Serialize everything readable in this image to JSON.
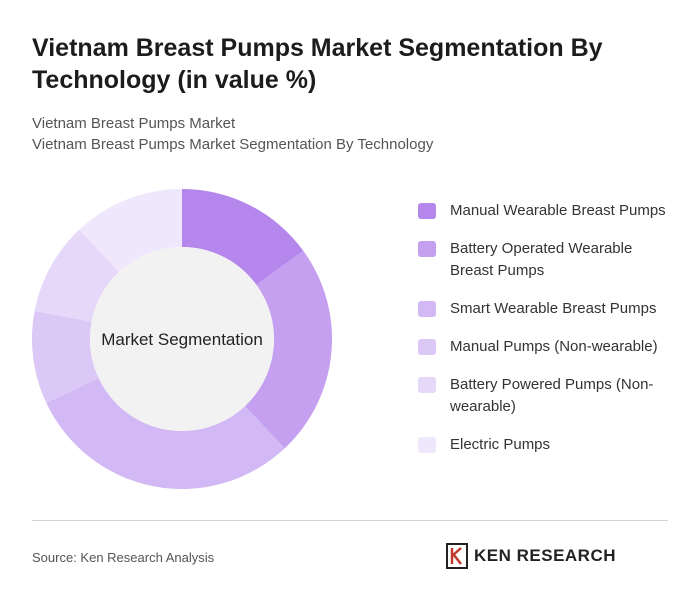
{
  "title": "Vietnam Breast Pumps Market Segmentation By Technology (in value %)",
  "subtitle_line1": "Vietnam Breast Pumps Market",
  "subtitle_line2": "Vietnam Breast Pumps Market Segmentation By Technology",
  "source": "Source: Ken Research Analysis",
  "logo_text": "KEN RESEARCH",
  "chart_data": {
    "type": "pie",
    "center_label": "Market Segmentation",
    "categories": [
      "Manual Wearable Breast Pumps",
      "Battery Operated Wearable Breast Pumps",
      "Smart Wearable Breast Pumps",
      "Manual Pumps (Non-wearable)",
      "Battery Powered Pumps (Non-wearable)",
      "Electric Pumps"
    ],
    "values": [
      15,
      23,
      30,
      10,
      10,
      12
    ],
    "colors": [
      "#b587ec",
      "#c59ff0",
      "#d2b8f4",
      "#dcc8f6",
      "#e6d8f9",
      "#efe7fb"
    ],
    "legend_position": "right"
  }
}
